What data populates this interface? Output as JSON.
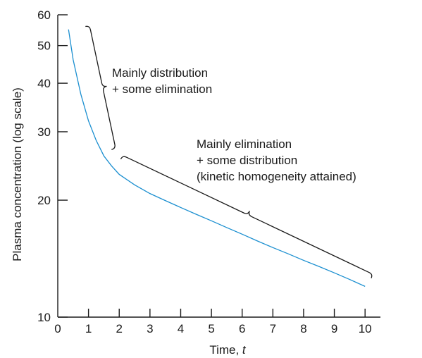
{
  "chart_data": {
    "type": "line",
    "title": "",
    "xlabel_main": "Time, ",
    "xlabel_var": "t",
    "ylabel": "Plasma concentration (log scale)",
    "xlim": [
      0,
      10
    ],
    "ylim": [
      10,
      60
    ],
    "yscale": "log",
    "grid": false,
    "x_ticks": [
      0,
      1,
      2,
      3,
      4,
      5,
      6,
      7,
      8,
      9,
      10
    ],
    "x_tick_labels": [
      "0",
      "1",
      "2",
      "3",
      "4",
      "5",
      "6",
      "7",
      "8",
      "9",
      "10"
    ],
    "y_ticks": [
      10,
      20,
      30,
      40,
      50,
      60
    ],
    "y_tick_labels": [
      "10",
      "20",
      "30",
      "40",
      "50",
      "60"
    ],
    "series": [
      {
        "color": "#1b8fd0",
        "x": [
          0.35,
          0.5,
          0.75,
          1.0,
          1.25,
          1.5,
          1.75,
          2.0,
          2.5,
          3.0,
          3.5,
          4.0,
          4.5,
          5.0,
          5.5,
          6.0,
          6.5,
          7.0,
          7.5,
          8.0,
          8.5,
          9.0,
          9.5,
          10.0
        ],
        "y": [
          55,
          46,
          37.5,
          32,
          28.5,
          26,
          24.5,
          23.3,
          21.9,
          20.8,
          19.95,
          19.15,
          18.4,
          17.7,
          17.0,
          16.35,
          15.7,
          15.1,
          14.55,
          14.0,
          13.5,
          13.0,
          12.5,
          12.0
        ]
      }
    ],
    "annotations": [
      {
        "lines": [
          "Mainly distribution",
          "+ some elimination"
        ],
        "brace_x": [
          0.9,
          1.75
        ],
        "brace_y": [
          56,
          27
        ]
      },
      {
        "lines": [
          "Mainly elimination",
          "+ some distribution",
          "(kinetic homogeneity attained)"
        ],
        "brace_x": [
          2.05,
          10.2
        ],
        "brace_y": [
          25.5,
          12.6
        ]
      }
    ]
  }
}
